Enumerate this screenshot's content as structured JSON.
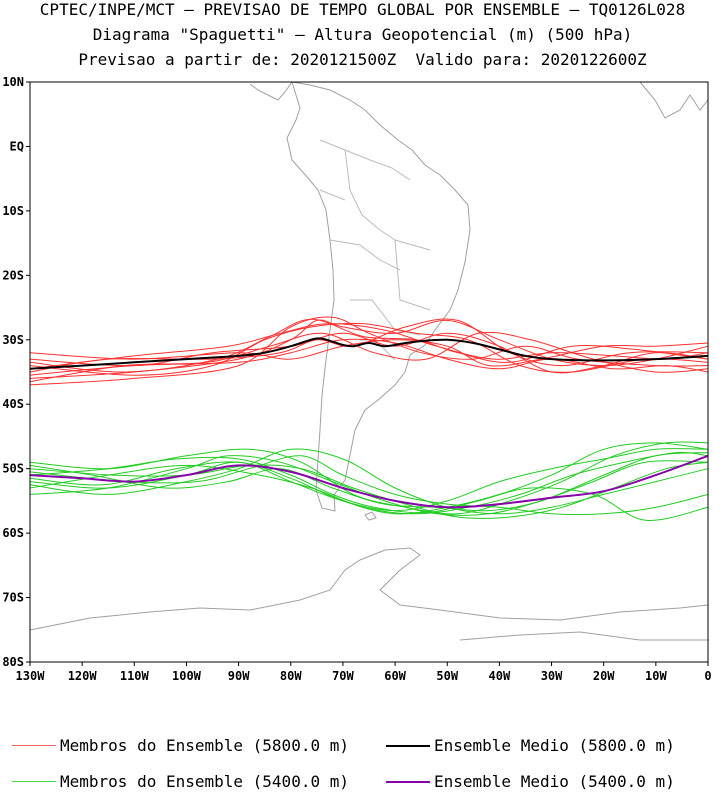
{
  "header": {
    "line1": "CPTEC/INPE/MCT — PREVISAO DE TEMPO GLOBAL POR ENSEMBLE — TQ0126L028",
    "line2": "Diagrama \"Spaguetti\" — Altura Geopotencial (m) (500 hPa)",
    "line3": "Previsao a partir de: 2020121500Z  Valido para: 2020122600Z"
  },
  "map": {
    "lon_range": [
      -130,
      0
    ],
    "lat_range": [
      -80,
      10
    ],
    "lat_ticks": [
      "10N",
      "EQ",
      "10S",
      "20S",
      "30S",
      "40S",
      "50S",
      "60S",
      "70S",
      "80S"
    ],
    "lon_ticks": [
      "130W",
      "120W",
      "110W",
      "100W",
      "90W",
      "80W",
      "70W",
      "60W",
      "50W",
      "40W",
      "30W",
      "20W",
      "10W",
      "0"
    ],
    "colors": {
      "coast": "#a0a0a0",
      "red_members": "#ff3030",
      "green_members": "#22cc22",
      "mean_5800": "#000000",
      "mean_5400": "#8800aa"
    }
  },
  "legend": [
    {
      "label": "Membros do Ensemble (5800.0 m)",
      "color": "#ff6060"
    },
    {
      "label": "Ensemble Medio (5800.0 m)",
      "color": "#000000"
    },
    {
      "label": "Membros do Ensemble (5400.0 m)",
      "color": "#44dd44"
    },
    {
      "label": "Ensemble Medio (5400.0 m)",
      "color": "#8800aa"
    }
  ],
  "contours": {
    "mean_5800": [
      [
        -130,
        -34.5
      ],
      [
        -120,
        -34
      ],
      [
        -110,
        -33.5
      ],
      [
        -100,
        -33
      ],
      [
        -90,
        -32.5
      ],
      [
        -85,
        -32
      ],
      [
        -80,
        -31
      ],
      [
        -75,
        -29.8
      ],
      [
        -72,
        -30.3
      ],
      [
        -70,
        -30.8
      ],
      [
        -68,
        -31
      ],
      [
        -65,
        -30.5
      ],
      [
        -62,
        -31
      ],
      [
        -58,
        -30.5
      ],
      [
        -55,
        -30.2
      ],
      [
        -50,
        -30
      ],
      [
        -45,
        -30.5
      ],
      [
        -40,
        -31.5
      ],
      [
        -35,
        -32.5
      ],
      [
        -30,
        -33
      ],
      [
        -20,
        -33.2
      ],
      [
        -10,
        -33
      ],
      [
        0,
        -32.5
      ]
    ],
    "mean_5400": [
      [
        -130,
        -51
      ],
      [
        -120,
        -51.5
      ],
      [
        -110,
        -52
      ],
      [
        -100,
        -51
      ],
      [
        -90,
        -49.5
      ],
      [
        -80,
        -50.5
      ],
      [
        -70,
        -53
      ],
      [
        -60,
        -55
      ],
      [
        -50,
        -56
      ],
      [
        -40,
        -55.5
      ],
      [
        -30,
        -54.5
      ],
      [
        -20,
        -53.5
      ],
      [
        -10,
        -51
      ],
      [
        0,
        -48
      ]
    ],
    "members_5800": [
      [
        [
          -130,
          -36
        ],
        [
          -110,
          -35
        ],
        [
          -90,
          -33
        ],
        [
          -80,
          -30
        ],
        [
          -75,
          -27
        ],
        [
          -70,
          -28
        ],
        [
          -60,
          -29
        ],
        [
          -50,
          -27
        ],
        [
          -40,
          -30
        ],
        [
          -30,
          -33
        ],
        [
          -20,
          -34
        ],
        [
          -10,
          -33
        ],
        [
          0,
          -31
        ]
      ],
      [
        [
          -130,
          -33
        ],
        [
          -110,
          -34
        ],
        [
          -95,
          -32
        ],
        [
          -80,
          -31
        ],
        [
          -70,
          -29
        ],
        [
          -60,
          -31
        ],
        [
          -50,
          -29
        ],
        [
          -40,
          -31
        ],
        [
          -30,
          -35
        ],
        [
          -20,
          -34
        ],
        [
          -10,
          -32
        ],
        [
          0,
          -33
        ]
      ],
      [
        [
          -130,
          -37
        ],
        [
          -110,
          -36
        ],
        [
          -90,
          -34
        ],
        [
          -80,
          -28
        ],
        [
          -72,
          -26.5
        ],
        [
          -65,
          -29
        ],
        [
          -55,
          -32
        ],
        [
          -45,
          -33
        ],
        [
          -35,
          -31
        ],
        [
          -25,
          -33
        ],
        [
          -10,
          -34
        ],
        [
          0,
          -34
        ]
      ],
      [
        [
          -130,
          -35
        ],
        [
          -115,
          -33
        ],
        [
          -95,
          -33
        ],
        [
          -82,
          -32
        ],
        [
          -75,
          -30
        ],
        [
          -68,
          -31
        ],
        [
          -58,
          -28
        ],
        [
          -48,
          -27
        ],
        [
          -38,
          -32
        ],
        [
          -28,
          -34
        ],
        [
          -15,
          -32
        ],
        [
          0,
          -32
        ]
      ],
      [
        [
          -130,
          -32
        ],
        [
          -110,
          -33
        ],
        [
          -90,
          -32
        ],
        [
          -80,
          -33
        ],
        [
          -70,
          -31
        ],
        [
          -60,
          -30
        ],
        [
          -50,
          -31
        ],
        [
          -42,
          -34
        ],
        [
          -32,
          -33
        ],
        [
          -20,
          -31
        ],
        [
          -10,
          -31
        ],
        [
          0,
          -30.5
        ]
      ],
      [
        [
          -130,
          -34
        ],
        [
          -110,
          -35.5
        ],
        [
          -95,
          -34
        ],
        [
          -85,
          -30
        ],
        [
          -76,
          -28
        ],
        [
          -66,
          -27.5
        ],
        [
          -56,
          -29
        ],
        [
          -46,
          -30
        ],
        [
          -36,
          -34
        ],
        [
          -26,
          -35
        ],
        [
          -12,
          -33
        ],
        [
          0,
          -33.5
        ]
      ],
      [
        [
          -130,
          -36.5
        ],
        [
          -112,
          -34
        ],
        [
          -96,
          -33.5
        ],
        [
          -84,
          -31
        ],
        [
          -74,
          -29
        ],
        [
          -64,
          -32
        ],
        [
          -54,
          -33
        ],
        [
          -44,
          -29
        ],
        [
          -34,
          -30
        ],
        [
          -22,
          -33
        ],
        [
          -10,
          -35
        ],
        [
          0,
          -34.5
        ]
      ],
      [
        [
          -130,
          -34.5
        ],
        [
          -110,
          -32.5
        ],
        [
          -92,
          -31
        ],
        [
          -82,
          -29
        ],
        [
          -73,
          -27.5
        ],
        [
          -62,
          -28.5
        ],
        [
          -52,
          -31
        ],
        [
          -41,
          -33
        ],
        [
          -30,
          -32
        ],
        [
          -18,
          -32.5
        ],
        [
          -8,
          -33
        ],
        [
          0,
          -32
        ]
      ],
      [
        [
          -130,
          -33.5
        ],
        [
          -112,
          -35
        ],
        [
          -94,
          -33
        ],
        [
          -84,
          -29.5
        ],
        [
          -76,
          -26.8
        ],
        [
          -66,
          -29.5
        ],
        [
          -56,
          -30
        ],
        [
          -48,
          -32
        ],
        [
          -38,
          -33.5
        ],
        [
          -26,
          -31
        ],
        [
          -14,
          -31.5
        ],
        [
          0,
          -33
        ]
      ],
      [
        [
          -130,
          -35.5
        ],
        [
          -110,
          -34
        ],
        [
          -90,
          -33.5
        ],
        [
          -80,
          -32
        ],
        [
          -70,
          -30
        ],
        [
          -60,
          -30.5
        ],
        [
          -50,
          -33
        ],
        [
          -40,
          -34.5
        ],
        [
          -30,
          -33
        ],
        [
          -18,
          -34.5
        ],
        [
          -8,
          -34
        ],
        [
          0,
          -35
        ]
      ]
    ],
    "members_5400": [
      [
        [
          -130,
          -49
        ],
        [
          -115,
          -50
        ],
        [
          -100,
          -48
        ],
        [
          -88,
          -47
        ],
        [
          -78,
          -49
        ],
        [
          -68,
          -54
        ],
        [
          -58,
          -56
        ],
        [
          -48,
          -57
        ],
        [
          -38,
          -55
        ],
        [
          -28,
          -52
        ],
        [
          -18,
          -48
        ],
        [
          -8,
          -46
        ],
        [
          0,
          -46
        ]
      ],
      [
        [
          -130,
          -52
        ],
        [
          -115,
          -53
        ],
        [
          -100,
          -51
        ],
        [
          -90,
          -49
        ],
        [
          -80,
          -52
        ],
        [
          -70,
          -55
        ],
        [
          -60,
          -56.5
        ],
        [
          -50,
          -55
        ],
        [
          -40,
          -52
        ],
        [
          -30,
          -50
        ],
        [
          -20,
          -48.5
        ],
        [
          -10,
          -47
        ],
        [
          0,
          -47
        ]
      ],
      [
        [
          -130,
          -54
        ],
        [
          -115,
          -53
        ],
        [
          -100,
          -50
        ],
        [
          -92,
          -48
        ],
        [
          -82,
          -49
        ],
        [
          -72,
          -52
        ],
        [
          -62,
          -55
        ],
        [
          -52,
          -57
        ],
        [
          -42,
          -57
        ],
        [
          -32,
          -55
        ],
        [
          -22,
          -52
        ],
        [
          -12,
          -49
        ],
        [
          0,
          -49
        ]
      ],
      [
        [
          -130,
          -50.5
        ],
        [
          -112,
          -52
        ],
        [
          -98,
          -52
        ],
        [
          -88,
          -50
        ],
        [
          -78,
          -48
        ],
        [
          -70,
          -51
        ],
        [
          -60,
          -54
        ],
        [
          -50,
          -55.5
        ],
        [
          -40,
          -56
        ],
        [
          -30,
          -57
        ],
        [
          -20,
          -57
        ],
        [
          -10,
          -56
        ],
        [
          0,
          -54
        ]
      ],
      [
        [
          -130,
          -51
        ],
        [
          -115,
          -50
        ],
        [
          -102,
          -48.5
        ],
        [
          -90,
          -48.5
        ],
        [
          -80,
          -51
        ],
        [
          -72,
          -54
        ],
        [
          -64,
          -56
        ],
        [
          -54,
          -56.8
        ],
        [
          -44,
          -55
        ],
        [
          -34,
          -53
        ],
        [
          -22,
          -54
        ],
        [
          -12,
          -58
        ],
        [
          0,
          -56
        ]
      ],
      [
        [
          -130,
          -53
        ],
        [
          -115,
          -51
        ],
        [
          -100,
          -49.5
        ],
        [
          -86,
          -51
        ],
        [
          -76,
          -53
        ],
        [
          -66,
          -56
        ],
        [
          -56,
          -57
        ],
        [
          -46,
          -56
        ],
        [
          -36,
          -54
        ],
        [
          -26,
          -51
        ],
        [
          -16,
          -49
        ],
        [
          -6,
          -47.5
        ],
        [
          0,
          -48
        ]
      ],
      [
        [
          -130,
          -49.5
        ],
        [
          -118,
          -51
        ],
        [
          -104,
          -53
        ],
        [
          -92,
          -52
        ],
        [
          -82,
          -50
        ],
        [
          -72,
          -53
        ],
        [
          -62,
          -55.5
        ],
        [
          -52,
          -56
        ],
        [
          -42,
          -56.5
        ],
        [
          -32,
          -55
        ],
        [
          -20,
          -51
        ],
        [
          -10,
          -48
        ],
        [
          0,
          -47.5
        ]
      ],
      [
        [
          -130,
          -52.5
        ],
        [
          -115,
          -54
        ],
        [
          -100,
          -52
        ],
        [
          -90,
          -50
        ],
        [
          -80,
          -47
        ],
        [
          -70,
          -48.5
        ],
        [
          -60,
          -53
        ],
        [
          -50,
          -56
        ],
        [
          -40,
          -57
        ],
        [
          -30,
          -56
        ],
        [
          -20,
          -54
        ],
        [
          -10,
          -52
        ],
        [
          0,
          -50
        ]
      ],
      [
        [
          -130,
          -51.5
        ],
        [
          -116,
          -52.5
        ],
        [
          -102,
          -50
        ],
        [
          -90,
          -49
        ],
        [
          -80,
          -51.5
        ],
        [
          -70,
          -55
        ],
        [
          -60,
          -57
        ],
        [
          -50,
          -56
        ],
        [
          -40,
          -54
        ],
        [
          -30,
          -51
        ],
        [
          -20,
          -47
        ],
        [
          -10,
          -46
        ],
        [
          0,
          -47
        ]
      ],
      [
        [
          -130,
          -50
        ],
        [
          -114,
          -51
        ],
        [
          -100,
          -51
        ],
        [
          -88,
          -49.5
        ],
        [
          -78,
          -50
        ],
        [
          -68,
          -53
        ],
        [
          -58,
          -55.5
        ],
        [
          -48,
          -57.5
        ],
        [
          -38,
          -57.5
        ],
        [
          -28,
          -56
        ],
        [
          -18,
          -53
        ],
        [
          -8,
          -50
        ],
        [
          0,
          -49
        ]
      ]
    ]
  }
}
